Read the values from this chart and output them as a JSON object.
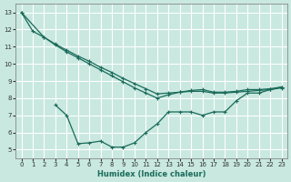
{
  "xlabel": "Humidex (Indice chaleur)",
  "bg_color": "#c8e8e0",
  "line_color": "#1a6b5a",
  "grid_color": "#ffffff",
  "xlim": [
    -0.5,
    23.5
  ],
  "ylim": [
    4.5,
    13.5
  ],
  "yticks": [
    5,
    6,
    7,
    8,
    9,
    10,
    11,
    12,
    13
  ],
  "xticks": [
    0,
    1,
    2,
    3,
    4,
    5,
    6,
    7,
    8,
    9,
    10,
    11,
    12,
    13,
    14,
    15,
    16,
    17,
    18,
    19,
    20,
    21,
    22,
    23
  ],
  "line1_x": [
    0,
    2,
    3,
    4,
    5,
    6,
    7,
    8,
    9,
    10,
    11,
    12,
    13,
    14,
    15,
    16,
    17,
    18,
    19,
    20,
    21,
    22,
    23
  ],
  "line1_y": [
    13.0,
    11.55,
    11.15,
    10.8,
    10.45,
    10.15,
    9.8,
    9.5,
    9.15,
    8.85,
    8.55,
    8.25,
    8.3,
    8.35,
    8.4,
    8.4,
    8.3,
    8.3,
    8.35,
    8.4,
    8.45,
    8.5,
    8.6
  ],
  "line2_x": [
    0,
    1,
    2,
    3,
    4,
    5,
    6,
    7,
    8,
    9,
    10,
    11,
    12,
    13,
    14,
    15,
    16,
    17,
    18,
    19,
    20,
    21,
    22,
    23
  ],
  "line2_y": [
    13.0,
    11.9,
    11.55,
    11.1,
    10.7,
    10.35,
    10.0,
    9.65,
    9.3,
    8.95,
    8.6,
    8.3,
    8.0,
    8.2,
    8.35,
    8.45,
    8.5,
    8.35,
    8.35,
    8.4,
    8.5,
    8.5,
    8.55,
    8.65
  ],
  "line3_x": [
    3,
    4,
    5,
    6,
    7,
    8,
    9,
    10,
    11,
    12,
    13,
    14,
    15,
    16,
    17,
    18,
    19,
    20,
    21,
    22,
    23
  ],
  "line3_y": [
    7.6,
    7.0,
    5.35,
    5.4,
    5.5,
    5.15,
    5.15,
    5.4,
    6.0,
    6.5,
    7.2,
    7.2,
    7.2,
    7.0,
    7.2,
    7.2,
    7.85,
    8.3,
    8.3,
    8.5,
    8.65
  ]
}
